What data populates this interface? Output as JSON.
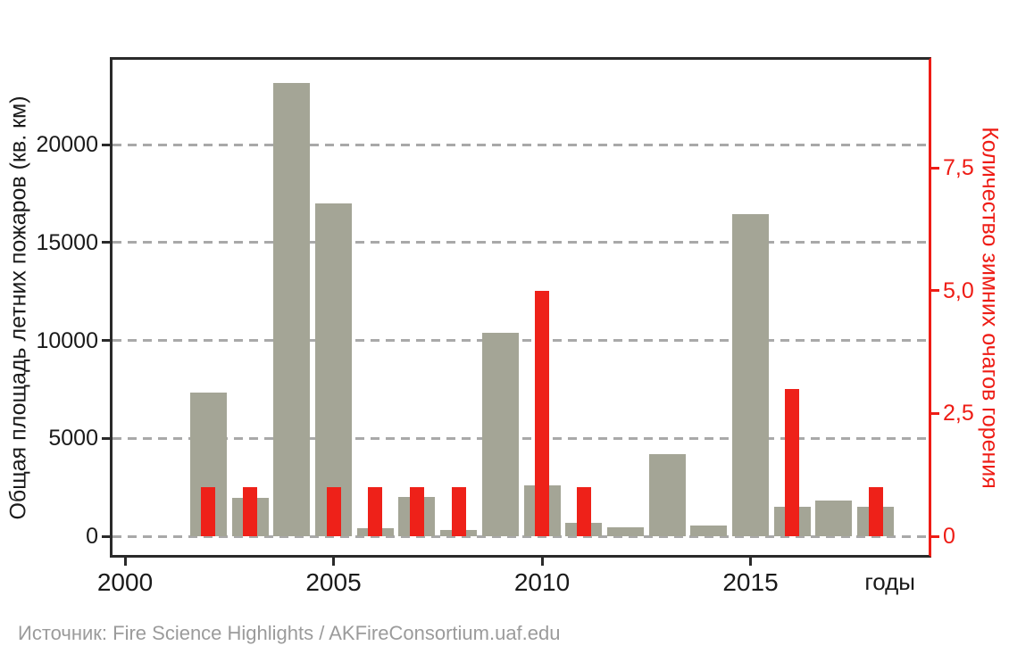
{
  "chart": {
    "x_axis_label": "годы",
    "x_tick_labels": [
      "2000",
      "2005",
      "2010",
      "2015"
    ],
    "left_axis": {
      "title": "Общая площадь летних пожаров (кв. км)",
      "tick_labels": [
        "0",
        "5000",
        "10000",
        "15000",
        "20000"
      ],
      "color": "#1a1a1a"
    },
    "right_axis": {
      "title": "Количество зимних очагов горения",
      "tick_labels": [
        "0",
        "2,5",
        "5,0",
        "7,5"
      ],
      "color": "#ee1c15"
    }
  },
  "chart_data": {
    "type": "bar",
    "x": [
      2002,
      2003,
      2004,
      2005,
      2006,
      2007,
      2008,
      2009,
      2010,
      2011,
      2012,
      2013,
      2014,
      2015,
      2016,
      2017,
      2018
    ],
    "series": [
      {
        "name": "Общая площадь летних пожаров (кв. км)",
        "axis": "left",
        "color": "#a4a596",
        "values": [
          7350,
          1950,
          23150,
          17000,
          430,
          2000,
          340,
          10400,
          2600,
          700,
          450,
          4200,
          530,
          16450,
          1500,
          1830,
          1500
        ]
      },
      {
        "name": "Количество зимних очагов горения",
        "axis": "right",
        "color": "#ee2119",
        "values": [
          1,
          1,
          0,
          1,
          1,
          1,
          1,
          0,
          5,
          1,
          0,
          0,
          0,
          0,
          3,
          0,
          1
        ]
      }
    ],
    "xlabel": "годы",
    "x_tick_values": [
      2000,
      2005,
      2010,
      2015
    ],
    "left_tick_values": [
      0,
      5000,
      10000,
      15000,
      20000
    ],
    "right_tick_values": [
      0,
      2.5,
      5,
      7.5
    ],
    "ylim_left": [
      0,
      24400
    ],
    "ylim_right": [
      0,
      9.72
    ],
    "xlim": [
      1999.6,
      2019.3
    ],
    "grid": "horizontal-dashed",
    "legend": "none"
  },
  "source_note": "Источник: Fire Science Highlights / AKFireConsortium.uaf.edu",
  "colors": {
    "summer_bar": "#a4a596",
    "winter_bar": "#ee2119",
    "grid": "#a9a9a9",
    "spine": "#2a2a2a",
    "right_spine": "#ee1c15",
    "source_text": "#9b9b9b",
    "background": "#ffffff"
  }
}
